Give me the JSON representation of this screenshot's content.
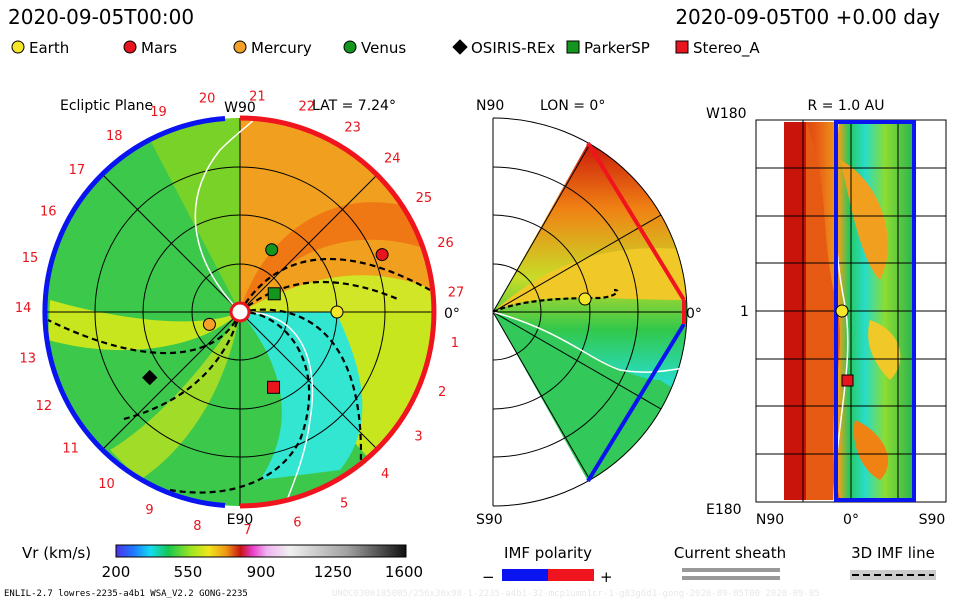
{
  "header": {
    "left_timestamp": "2020-09-05T00:00",
    "right_timestamp": "2020-09-05T00 +0.00 day"
  },
  "legend": [
    {
      "label": "Earth",
      "marker": "circle",
      "color": "#f5e628"
    },
    {
      "label": "Mars",
      "marker": "circle",
      "color": "#e8141e"
    },
    {
      "label": "Mercury",
      "marker": "circle",
      "color": "#f5a028"
    },
    {
      "label": "Venus",
      "marker": "circle",
      "color": "#14961e"
    },
    {
      "label": "OSIRIS-REx",
      "marker": "diamond",
      "color": "#000000"
    },
    {
      "label": "ParkerSP",
      "marker": "square",
      "color": "#14961e"
    },
    {
      "label": "Stereo_A",
      "marker": "square",
      "color": "#e8141e"
    }
  ],
  "panels": {
    "ecliptic": {
      "title": "Ecliptic Plane",
      "lat": "LAT = 7.24°",
      "top_label": "W90",
      "bottom_label": "E90",
      "right_label": "0°",
      "carrington_ticks": [
        "1",
        "2",
        "3",
        "4",
        "5",
        "6",
        "7",
        "8",
        "9",
        "10",
        "11",
        "12",
        "13",
        "14",
        "15",
        "16",
        "17",
        "18",
        "19",
        "20",
        "21",
        "22",
        "23",
        "24",
        "25",
        "26",
        "27"
      ]
    },
    "meridional": {
      "lon": "LON = 0°",
      "top_label": "N90",
      "bottom_label": "S90",
      "right_label": "0°"
    },
    "map": {
      "title": "R = 1.0 AU",
      "top_left_label": "W180",
      "bottom_left_label": "E180",
      "mid_left_label": "1",
      "xlabels": [
        "N90",
        "0°",
        "S90"
      ]
    }
  },
  "colorbar": {
    "label": "Vr (km/s)",
    "ticks": [
      "200",
      "550",
      "900",
      "1250",
      "1600"
    ],
    "min": 200,
    "max": 1600
  },
  "imf_polarity": {
    "label": "IMF polarity",
    "minus": "−",
    "plus": "+",
    "neg_color": "#0a14f0",
    "pos_color": "#f0141e"
  },
  "current_sheath": {
    "label": "Current sheath"
  },
  "imf_line": {
    "label": "3D IMF line"
  },
  "footer": {
    "model": "ENLIL-2.7 lowres-2235-a4b1 WSA_V2.2 GONG-2235",
    "run_id": "UNOC0300185005/256x30x90-1-2235-a4b1-32-mcp1umn1cr-1-g83g6d1-gong-2020-09-05T00 2020-09-05"
  },
  "chart_data": {
    "type": "heatmap",
    "title": "Vr (km/s)",
    "value_range": [
      200,
      1600
    ],
    "bodies": [
      {
        "name": "Earth",
        "panel": "ecliptic",
        "r_au": 1.0,
        "lon_deg": 0
      },
      {
        "name": "Mars",
        "panel": "ecliptic",
        "r_au": 1.58,
        "lon_deg": 22
      },
      {
        "name": "Mercury",
        "panel": "ecliptic",
        "r_au": 0.34,
        "lon_deg": 202
      },
      {
        "name": "Venus",
        "panel": "ecliptic",
        "r_au": 0.72,
        "lon_deg": 63
      },
      {
        "name": "OSIRIS-REx",
        "panel": "ecliptic",
        "r_au": 1.15,
        "lon_deg": 216
      },
      {
        "name": "ParkerSP",
        "panel": "ecliptic",
        "r_au": 0.4,
        "lon_deg": 28
      },
      {
        "name": "Stereo_A",
        "panel": "ecliptic",
        "r_au": 0.85,
        "lon_deg": 294
      }
    ]
  }
}
